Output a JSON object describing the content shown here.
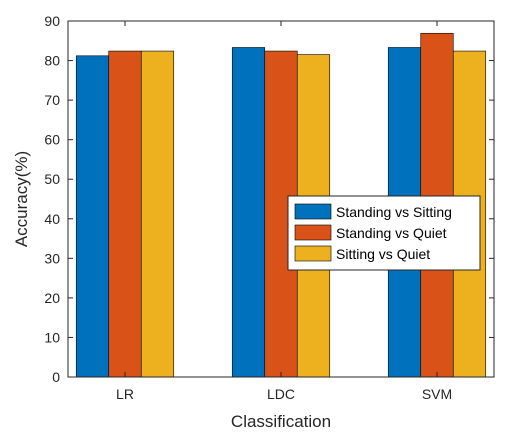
{
  "chart_data": {
    "type": "bar",
    "title": "",
    "xlabel": "Classification",
    "ylabel": "Accuracy(%)",
    "categories": [
      "LR",
      "LDC",
      "SVM"
    ],
    "ylim": [
      0,
      90
    ],
    "yticks": [
      0,
      10,
      20,
      30,
      40,
      50,
      60,
      70,
      80,
      90
    ],
    "grid": false,
    "legend_position": "center-right",
    "series": [
      {
        "name": "Standing vs Sitting",
        "color": "#0072BD",
        "values": [
          81.2,
          83.3,
          83.3
        ]
      },
      {
        "name": "Standing vs Quiet",
        "color": "#D95319",
        "values": [
          82.4,
          82.4,
          86.9
        ]
      },
      {
        "name": "Sitting vs Quiet",
        "color": "#EDB120",
        "values": [
          82.4,
          81.5,
          82.4
        ]
      }
    ]
  }
}
